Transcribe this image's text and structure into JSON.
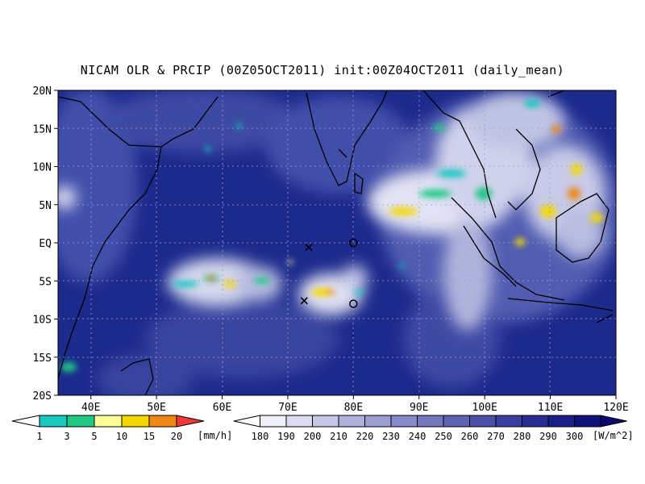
{
  "title": "NICAM OLR & PRCIP (00Z05OCT2011) init:00Z04OCT2011 (daily_mean)",
  "map": {
    "lat_ticks": [
      "20N",
      "15N",
      "10N",
      "5N",
      "EQ",
      "5S",
      "10S",
      "15S",
      "20S"
    ],
    "lon_ticks": [
      "40E",
      "50E",
      "60E",
      "70E",
      "80E",
      "90E",
      "100E",
      "110E",
      "120E"
    ],
    "lon_range": [
      35,
      120
    ],
    "lat_range": [
      -20,
      20
    ],
    "ocean_color": "#1c2a8c",
    "markers": [
      {
        "kind": "x",
        "lon": 73.2,
        "lat": -0.6
      },
      {
        "kind": "x",
        "lon": 72.5,
        "lat": -7.6
      },
      {
        "kind": "o",
        "lon": 80.0,
        "lat": 0.0
      },
      {
        "kind": "o",
        "lon": 80.0,
        "lat": -8.0
      }
    ]
  },
  "precip_legend": {
    "labels": [
      "1",
      "3",
      "5",
      "10",
      "15",
      "20"
    ],
    "colors": [
      "#18c8c0",
      "#1fc883",
      "#ffff99",
      "#f4d800",
      "#f08818",
      "#f03838"
    ],
    "unit": "[mm/h]"
  },
  "olr_legend": {
    "labels": [
      "180",
      "190",
      "200",
      "210",
      "220",
      "230",
      "240",
      "250",
      "260",
      "270",
      "280",
      "290",
      "300"
    ],
    "colors": [
      "#f0f0f8",
      "#dadaf0",
      "#c6c6e6",
      "#b0b0dc",
      "#9c9ed2",
      "#888ac8",
      "#7476be",
      "#6062b4",
      "#4c4ea8",
      "#3a3c9e",
      "#2a2c94",
      "#1c1e88",
      "#10127c",
      "#0a0a6e"
    ],
    "unit": "[W/m^2]"
  }
}
